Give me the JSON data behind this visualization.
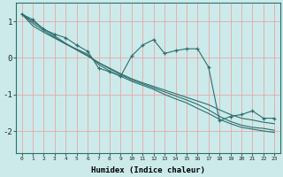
{
  "xlabel": "Humidex (Indice chaleur)",
  "ylabel": "",
  "xlim": [
    -0.5,
    23.5
  ],
  "ylim": [
    -2.6,
    1.5
  ],
  "background_color": "#cceaea",
  "grid_color": "#e8a8a8",
  "line_color": "#2d6e6e",
  "xticks": [
    0,
    1,
    2,
    3,
    4,
    5,
    6,
    7,
    8,
    9,
    10,
    11,
    12,
    13,
    14,
    15,
    16,
    17,
    18,
    19,
    20,
    21,
    22,
    23
  ],
  "yticks": [
    -2,
    -1,
    0,
    1
  ],
  "data_x": [
    0,
    1,
    2,
    3,
    4,
    5,
    6,
    7,
    8,
    9,
    10,
    11,
    12,
    13,
    14,
    15,
    16,
    17,
    18,
    19,
    20,
    21,
    22,
    23
  ],
  "data_y_main": [
    1.2,
    1.05,
    0.78,
    0.65,
    0.55,
    0.35,
    0.18,
    -0.28,
    -0.38,
    -0.5,
    0.05,
    0.35,
    0.5,
    0.12,
    0.2,
    0.25,
    0.25,
    -0.25,
    -1.72,
    -1.6,
    -1.55,
    -1.45,
    -1.65,
    -1.65
  ],
  "data_y_line1": [
    1.2,
    1.0,
    0.8,
    0.6,
    0.4,
    0.22,
    0.05,
    -0.13,
    -0.28,
    -0.43,
    -0.57,
    -0.68,
    -0.78,
    -0.88,
    -0.98,
    -1.08,
    -1.18,
    -1.28,
    -1.42,
    -1.55,
    -1.65,
    -1.7,
    -1.76,
    -1.8
  ],
  "data_y_line2": [
    1.2,
    0.95,
    0.75,
    0.56,
    0.38,
    0.22,
    0.06,
    -0.13,
    -0.3,
    -0.46,
    -0.6,
    -0.71,
    -0.82,
    -0.93,
    -1.04,
    -1.15,
    -1.27,
    -1.42,
    -1.6,
    -1.74,
    -1.84,
    -1.9,
    -1.93,
    -1.98
  ],
  "data_y_line3": [
    1.2,
    0.88,
    0.7,
    0.54,
    0.38,
    0.24,
    0.1,
    -0.18,
    -0.36,
    -0.5,
    -0.64,
    -0.75,
    -0.86,
    -1.0,
    -1.12,
    -1.23,
    -1.38,
    -1.52,
    -1.68,
    -1.8,
    -1.9,
    -1.95,
    -2.0,
    -2.04
  ]
}
